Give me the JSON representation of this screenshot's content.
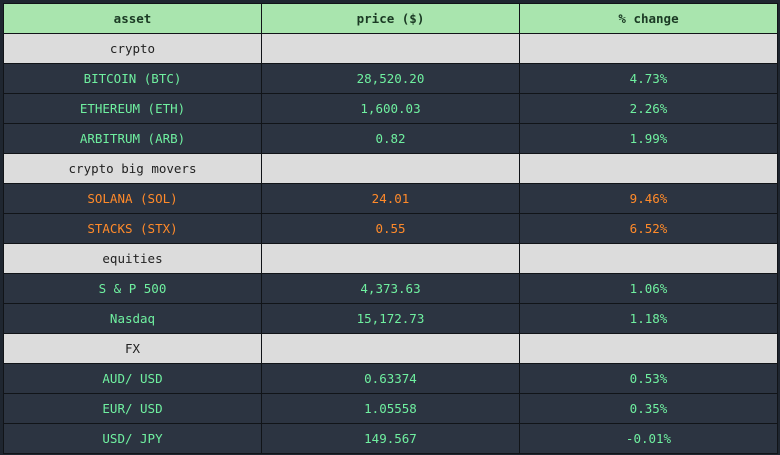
{
  "table": {
    "columns": [
      "asset",
      "price ($)",
      "% change"
    ],
    "sections": [
      {
        "title": "crypto",
        "rows": [
          {
            "asset": "BITCOIN (BTC)",
            "price": "28,520.20",
            "change": "4.73%",
            "tone": "green"
          },
          {
            "asset": "ETHEREUM (ETH)",
            "price": "1,600.03",
            "change": "2.26%",
            "tone": "green"
          },
          {
            "asset": "ARBITRUM (ARB)",
            "price": "0.82",
            "change": "1.99%",
            "tone": "green"
          }
        ]
      },
      {
        "title": "crypto big movers",
        "rows": [
          {
            "asset": "SOLANA (SOL)",
            "price": "24.01",
            "change": "9.46%",
            "tone": "orange"
          },
          {
            "asset": "STACKS (STX)",
            "price": "0.55",
            "change": "6.52%",
            "tone": "orange"
          }
        ]
      },
      {
        "title": "equities",
        "rows": [
          {
            "asset": "S & P 500",
            "price": "4,373.63",
            "change": "1.06%",
            "tone": "green"
          },
          {
            "asset": "Nasdaq",
            "price": "15,172.73",
            "change": "1.18%",
            "tone": "green"
          }
        ]
      },
      {
        "title": "FX",
        "rows": [
          {
            "asset": "AUD/ USD",
            "price": "0.63374",
            "change": "0.53%",
            "tone": "green"
          },
          {
            "asset": "EUR/ USD",
            "price": "1.05558",
            "change": "0.35%",
            "tone": "green"
          },
          {
            "asset": "USD/ JPY",
            "price": "149.567",
            "change": "-0.01%",
            "tone": "green"
          }
        ]
      }
    ]
  },
  "colors": {
    "header_bg": "#a9e5ae",
    "section_bg": "#dcdcdc",
    "row_bg": "#2c3441",
    "green_text": "#6ff0a0",
    "orange_text": "#ff8a2a"
  }
}
